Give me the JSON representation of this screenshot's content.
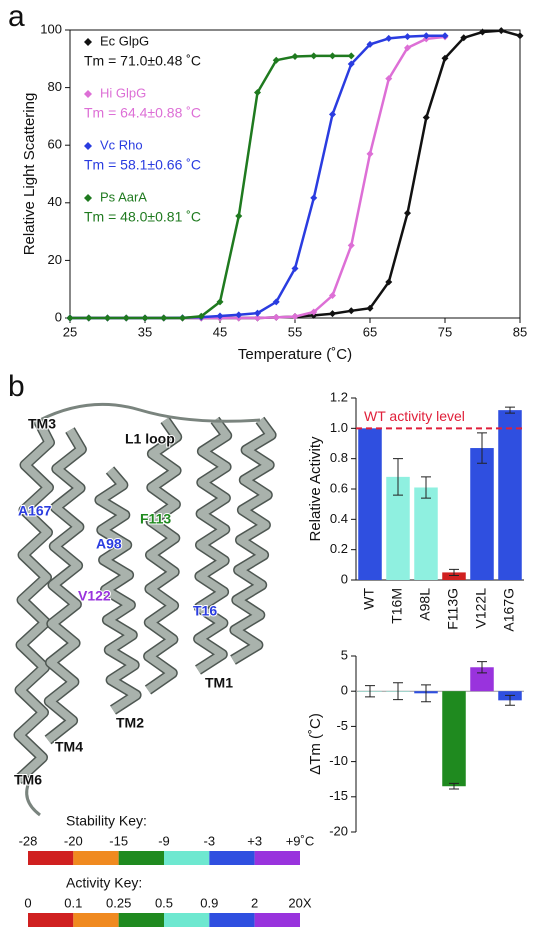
{
  "panels": [
    "a",
    "b"
  ],
  "chart_data": [
    {
      "type": "line",
      "xlabel": "Temperature (˚C)",
      "ylabel": "Relative Light Scattering",
      "x": [
        25,
        27.5,
        30,
        32.5,
        35,
        37.5,
        40,
        42.5,
        45,
        47.5,
        50,
        52.5,
        55,
        57.5,
        60,
        62.5,
        65,
        67.5,
        70,
        72.5,
        75,
        77.5,
        80,
        82.5,
        85
      ],
      "xlim": [
        25,
        85
      ],
      "xticks": [
        25,
        35,
        45,
        55,
        65,
        75,
        85
      ],
      "ylim": [
        0,
        100
      ],
      "yticks": [
        0,
        20,
        40,
        60,
        80,
        100
      ],
      "series": [
        {
          "name": "Ec GlpG",
          "tm_label": "Tm = 71.0±0.48 ˚C",
          "color": "#111111",
          "values": [
            0,
            0,
            0,
            0,
            0,
            0,
            0,
            0,
            0,
            0,
            0,
            0.2,
            0.5,
            0.9,
            1.5,
            2.5,
            3.4,
            12.5,
            36.4,
            69.6,
            90.2,
            97.3,
            99.3,
            99.8,
            98
          ]
        },
        {
          "name": "Hi GlpG",
          "tm_label": "Tm = 64.4±0.88 ˚C",
          "color": "#dd6fd6",
          "values": [
            0,
            0,
            0,
            0,
            0,
            0,
            0,
            0,
            0,
            0,
            0,
            0.2,
            0.5,
            2.1,
            7.8,
            25.2,
            57,
            83.1,
            93.8,
            96.9,
            97.6,
            null,
            null,
            null,
            null
          ]
        },
        {
          "name": "Vc Rho",
          "tm_label": "Tm = 58.1±0.66 ˚C",
          "color": "#2a3ce0",
          "values": [
            0,
            0,
            0,
            0,
            0,
            0,
            0.1,
            0.3,
            0.7,
            1.1,
            1.7,
            5.6,
            17.2,
            41.7,
            70.7,
            88.2,
            95,
            97.1,
            97.7,
            98,
            98,
            null,
            null,
            null,
            null
          ]
        },
        {
          "name": "Ps AarA",
          "tm_label": "Tm = 48.0±0.81 ˚C",
          "color": "#1f7a1f",
          "values": [
            0,
            0,
            0,
            0,
            0,
            0,
            0,
            0.6,
            5.6,
            35.4,
            78.3,
            89.5,
            90.8,
            91,
            91,
            91,
            null,
            null,
            null,
            null,
            null,
            null,
            null,
            null,
            null
          ]
        }
      ]
    },
    {
      "type": "bar",
      "ylabel": "Relative Activity",
      "categories": [
        "WT",
        "T16M",
        "A98L",
        "F113G",
        "V122L",
        "A167G"
      ],
      "values": [
        1.0,
        0.68,
        0.61,
        0.05,
        0.87,
        1.12
      ],
      "errors": [
        0,
        0.12,
        0.07,
        0.02,
        0.1,
        0.02
      ],
      "colors": [
        "#2f4fe0",
        "#8ff0e0",
        "#8ff0e0",
        "#d02020",
        "#2f4fe0",
        "#2f4fe0"
      ],
      "ylim": [
        0,
        1.2
      ],
      "yticks": [
        0,
        0.2,
        0.4,
        0.6,
        0.8,
        {
          "value": 1,
          "label": "1.0"
        },
        1.2
      ],
      "reference": {
        "value": 1,
        "label": "WT activity level",
        "color": "#e0203a"
      }
    },
    {
      "type": "bar",
      "ylabel": "ΔTm (˚C)",
      "values": [
        0,
        0,
        -0.3,
        -13.5,
        3.4,
        -1.3
      ],
      "errors": [
        0.8,
        1.2,
        1.2,
        0.4,
        0.8,
        0.7
      ],
      "colors": [
        "#8ff0e0",
        "#8ff0e0",
        "#2f4fe0",
        "#1f8a1f",
        "#9933dd",
        "#2f4fe0"
      ],
      "ylim": [
        -20,
        5
      ],
      "yticks": [
        -20,
        -15,
        -10,
        -5,
        0,
        5
      ]
    }
  ],
  "structure": {
    "labels": [
      {
        "text": "TM3",
        "color": "#111111"
      },
      {
        "text": "L1 loop",
        "color": "#111111"
      },
      {
        "text": "A167",
        "color": "#2a3ce0"
      },
      {
        "text": "F113",
        "color": "#1f8a1f"
      },
      {
        "text": "A98",
        "color": "#2a3ce0"
      },
      {
        "text": "V122",
        "color": "#9933dd"
      },
      {
        "text": "T16",
        "color": "#2a3ce0"
      },
      {
        "text": "TM1",
        "color": "#111111"
      },
      {
        "text": "TM2",
        "color": "#111111"
      },
      {
        "text": "TM4",
        "color": "#111111"
      },
      {
        "text": "TM6",
        "color": "#111111"
      }
    ]
  },
  "keys": [
    {
      "title": "Stability Key:",
      "labels": [
        "-28",
        "-20",
        "-15",
        "-9",
        "-3",
        "+3",
        "+9˚C"
      ],
      "colors": [
        "#d02020",
        "#f08a20",
        "#1f8a1f",
        "#6ee8d0",
        "#2f4fe0",
        "#9933dd"
      ]
    },
    {
      "title": "Activity Key:",
      "labels": [
        "0",
        "0.1",
        "0.25",
        "0.5",
        "0.9",
        "2",
        "20X"
      ],
      "colors": [
        "#d02020",
        "#f08a20",
        "#1f8a1f",
        "#6ee8d0",
        "#2f4fe0",
        "#9933dd"
      ]
    }
  ]
}
